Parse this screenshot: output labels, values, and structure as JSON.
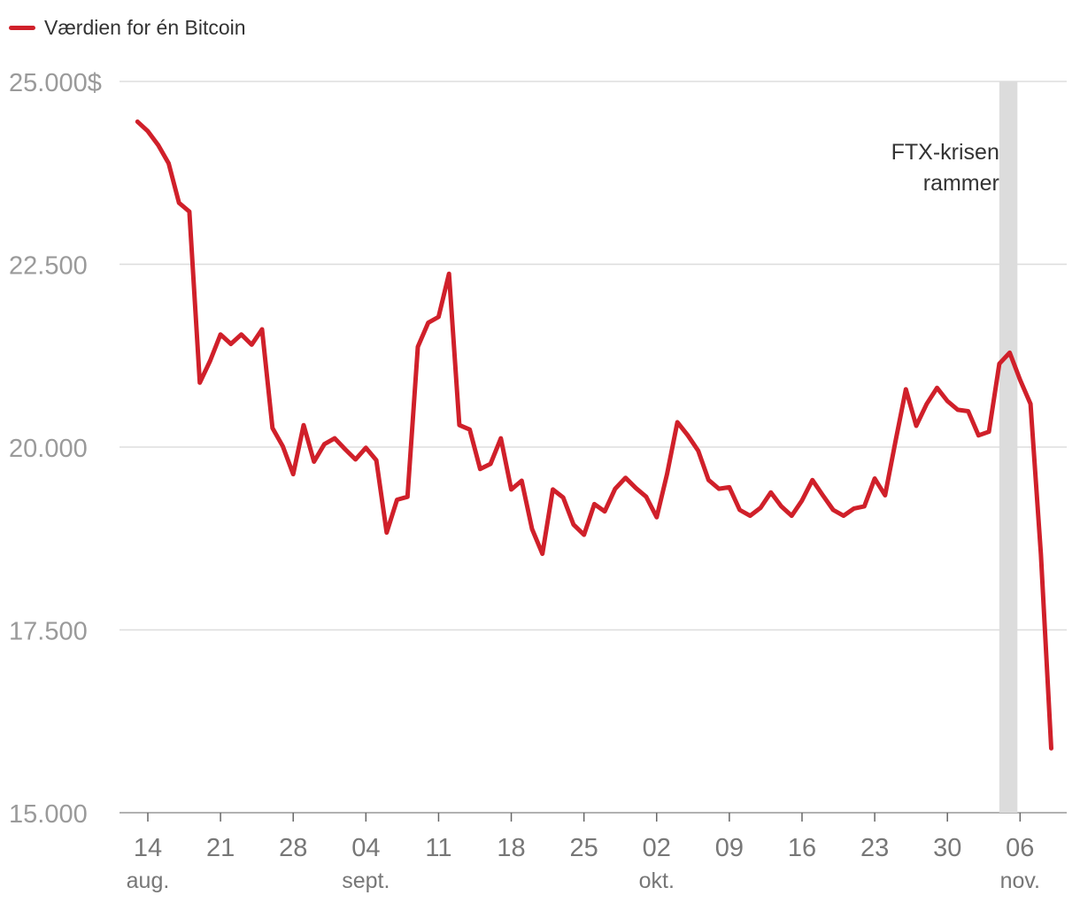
{
  "chart_data": {
    "type": "line",
    "title": "",
    "xlabel": "",
    "ylabel": "",
    "ylim": [
      15000,
      25000
    ],
    "grid": true,
    "legend_position": "top-left",
    "series": [
      {
        "name": "Værdien for én Bitcoin",
        "color": "#d0202a",
        "x": [
          "2022-08-13",
          "2022-08-14",
          "2022-08-15",
          "2022-08-16",
          "2022-08-17",
          "2022-08-18",
          "2022-08-19",
          "2022-08-20",
          "2022-08-21",
          "2022-08-22",
          "2022-08-23",
          "2022-08-24",
          "2022-08-25",
          "2022-08-26",
          "2022-08-27",
          "2022-08-28",
          "2022-08-29",
          "2022-08-30",
          "2022-08-31",
          "2022-09-01",
          "2022-09-02",
          "2022-09-03",
          "2022-09-04",
          "2022-09-05",
          "2022-09-06",
          "2022-09-07",
          "2022-09-08",
          "2022-09-09",
          "2022-09-10",
          "2022-09-11",
          "2022-09-12",
          "2022-09-13",
          "2022-09-14",
          "2022-09-15",
          "2022-09-16",
          "2022-09-17",
          "2022-09-18",
          "2022-09-19",
          "2022-09-20",
          "2022-09-21",
          "2022-09-22",
          "2022-09-23",
          "2022-09-24",
          "2022-09-25",
          "2022-09-26",
          "2022-09-27",
          "2022-09-28",
          "2022-09-29",
          "2022-09-30",
          "2022-10-01",
          "2022-10-02",
          "2022-10-03",
          "2022-10-04",
          "2022-10-05",
          "2022-10-06",
          "2022-10-07",
          "2022-10-08",
          "2022-10-09",
          "2022-10-10",
          "2022-10-11",
          "2022-10-12",
          "2022-10-13",
          "2022-10-14",
          "2022-10-15",
          "2022-10-16",
          "2022-10-17",
          "2022-10-18",
          "2022-10-19",
          "2022-10-20",
          "2022-10-21",
          "2022-10-22",
          "2022-10-23",
          "2022-10-24",
          "2022-10-25",
          "2022-10-26",
          "2022-10-27",
          "2022-10-28",
          "2022-10-29",
          "2022-10-30",
          "2022-10-31",
          "2022-11-01",
          "2022-11-02",
          "2022-11-03",
          "2022-11-04",
          "2022-11-05",
          "2022-11-06",
          "2022-11-07",
          "2022-11-08",
          "2022-11-09"
        ],
        "values": [
          24450,
          24320,
          24130,
          23880,
          23340,
          23220,
          20880,
          21180,
          21540,
          21410,
          21540,
          21400,
          21610,
          20260,
          20010,
          19630,
          20300,
          19800,
          20040,
          20120,
          19970,
          19830,
          19990,
          19820,
          18830,
          19280,
          19320,
          21370,
          21700,
          21780,
          22370,
          20300,
          20240,
          19700,
          19770,
          20120,
          19420,
          19540,
          18880,
          18540,
          19420,
          19310,
          18940,
          18800,
          19220,
          19120,
          19430,
          19580,
          19440,
          19320,
          19040,
          19630,
          20340,
          20160,
          19950,
          19550,
          19430,
          19450,
          19140,
          19060,
          19170,
          19380,
          19190,
          19060,
          19270,
          19550,
          19340,
          19140,
          19060,
          19160,
          19190,
          19570,
          19340,
          20080,
          20790,
          20290,
          20590,
          20810,
          20630,
          20510,
          20490,
          20160,
          20210,
          21140,
          21290,
          20920,
          20590,
          18540,
          15880
        ]
      }
    ],
    "y_ticks": [
      {
        "value": 25000,
        "label": "25.000$"
      },
      {
        "value": 22500,
        "label": "22.500"
      },
      {
        "value": 20000,
        "label": "20.000"
      },
      {
        "value": 17500,
        "label": "17.500"
      },
      {
        "value": 15000,
        "label": "15.000"
      }
    ],
    "x_ticks": [
      {
        "date": "2022-08-14",
        "label": "14",
        "month": "aug."
      },
      {
        "date": "2022-08-21",
        "label": "21",
        "month": ""
      },
      {
        "date": "2022-08-28",
        "label": "28",
        "month": ""
      },
      {
        "date": "2022-09-04",
        "label": "04",
        "month": "sept."
      },
      {
        "date": "2022-09-11",
        "label": "11",
        "month": ""
      },
      {
        "date": "2022-09-18",
        "label": "18",
        "month": ""
      },
      {
        "date": "2022-09-25",
        "label": "25",
        "month": ""
      },
      {
        "date": "2022-10-02",
        "label": "02",
        "month": "okt."
      },
      {
        "date": "2022-10-09",
        "label": "09",
        "month": ""
      },
      {
        "date": "2022-10-16",
        "label": "16",
        "month": ""
      },
      {
        "date": "2022-10-23",
        "label": "23",
        "month": ""
      },
      {
        "date": "2022-10-30",
        "label": "30",
        "month": ""
      },
      {
        "date": "2022-11-06",
        "label": "06",
        "month": "nov."
      }
    ],
    "annotations": [
      {
        "type": "band",
        "x_start": "2022-11-04",
        "x_end": "2022-11-06",
        "color": "#dcdcdc",
        "lines": [
          "FTX-krisen",
          "rammer"
        ]
      }
    ]
  }
}
